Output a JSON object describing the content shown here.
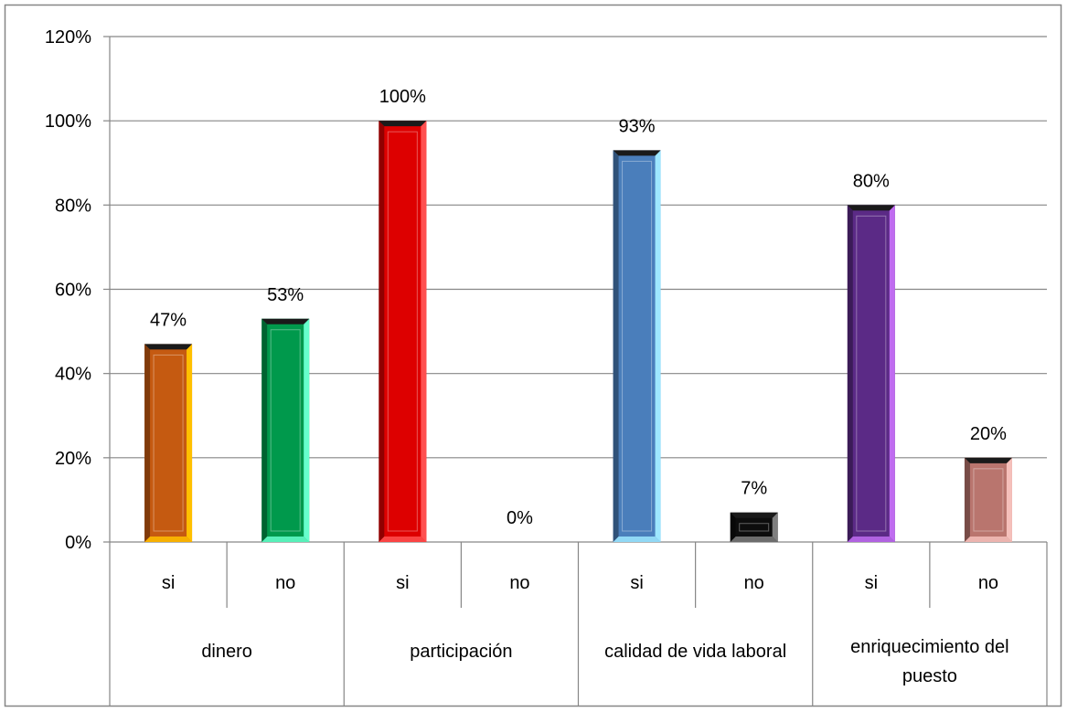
{
  "chart_data": {
    "type": "bar",
    "title": "",
    "xlabel": "",
    "ylabel": "",
    "ylim": [
      0,
      1.2
    ],
    "y_ticks": [
      "0%",
      "20%",
      "40%",
      "60%",
      "80%",
      "100%",
      "120%"
    ],
    "y_tick_values": [
      0,
      0.2,
      0.4,
      0.6,
      0.8,
      1.0,
      1.2
    ],
    "grid": true,
    "legend": "none",
    "groups": [
      {
        "label": "dinero",
        "lines": [
          "dinero"
        ],
        "categories": [
          "si",
          "no"
        ]
      },
      {
        "label": "participación",
        "lines": [
          "participación"
        ],
        "categories": [
          "si",
          "no"
        ]
      },
      {
        "label": "calidad de vida laboral",
        "lines": [
          "calidad de vida laboral"
        ],
        "categories": [
          "si",
          "no"
        ]
      },
      {
        "label": "enriquecimiento del puesto",
        "lines": [
          "enriquecimiento del",
          "puesto"
        ],
        "categories": [
          "si",
          "no"
        ]
      }
    ],
    "bars": [
      {
        "group": "dinero",
        "category": "si",
        "value": 0.47,
        "label": "47%",
        "color": "#c55a11",
        "light": "#ffc000"
      },
      {
        "group": "dinero",
        "category": "no",
        "value": 0.53,
        "label": "53%",
        "color": "#00994c",
        "light": "#66ffcc"
      },
      {
        "group": "participación",
        "category": "si",
        "value": 1.0,
        "label": "100%",
        "color": "#dd0000",
        "light": "#ff5050"
      },
      {
        "group": "participación",
        "category": "no",
        "value": 0.0,
        "label": "0%",
        "color": "#808080",
        "light": "#bfbfbf"
      },
      {
        "group": "calidad de vida laboral",
        "category": "si",
        "value": 0.93,
        "label": "93%",
        "color": "#4a7ebb",
        "light": "#9ee7ff"
      },
      {
        "group": "calidad de vida laboral",
        "category": "no",
        "value": 0.07,
        "label": "7%",
        "color": "#0d0d0d",
        "light": "#7f7f7f"
      },
      {
        "group": "enriquecimiento del puesto",
        "category": "si",
        "value": 0.8,
        "label": "80%",
        "color": "#5b2a86",
        "light": "#c06cf0"
      },
      {
        "group": "enriquecimiento del puesto",
        "category": "no",
        "value": 0.2,
        "label": "20%",
        "color": "#b9756e",
        "light": "#f5c0bb"
      }
    ]
  }
}
